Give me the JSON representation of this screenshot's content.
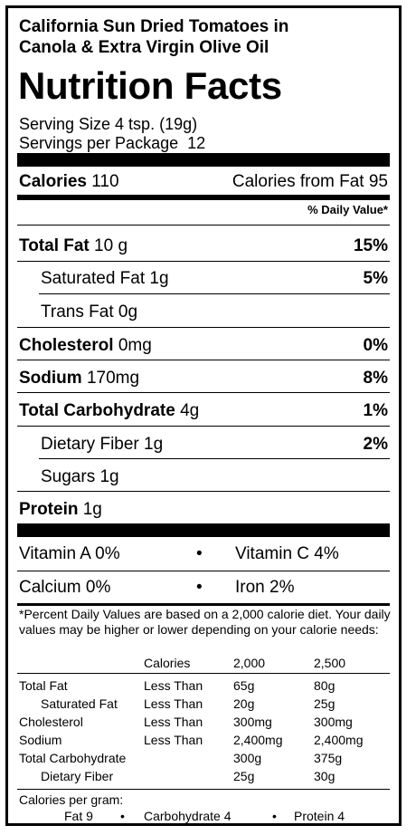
{
  "product": {
    "line1": "California Sun Dried Tomatoes in",
    "line2": "Canola & Extra Virgin Olive Oil"
  },
  "title": "Nutrition Facts",
  "serving": {
    "size": "Serving Size 4 tsp. (19g)",
    "per_package": "Servings per Package  12"
  },
  "calories": {
    "label": "Calories",
    "value": "110",
    "from_fat": "Calories from Fat 95"
  },
  "dv_header": "% Daily Value*",
  "nutrients": [
    {
      "label": "Total Fat",
      "amount": "10 g",
      "dv": "15%"
    },
    {
      "label": "Saturated Fat 1g",
      "amount": "",
      "dv": "5%"
    },
    {
      "label": "Trans Fat 0g",
      "amount": "",
      "dv": ""
    },
    {
      "label": "Cholesterol",
      "amount": "0mg",
      "dv": "0%"
    },
    {
      "label": "Sodium",
      "amount": "170mg",
      "dv": "8%"
    },
    {
      "label": "Total Carbohydrate",
      "amount": "4g",
      "dv": "1%"
    },
    {
      "label": "Dietary Fiber 1g",
      "amount": "",
      "dv": "2%"
    },
    {
      "label": "Sugars 1g",
      "amount": "",
      "dv": ""
    },
    {
      "label": "Protein",
      "amount": "1g",
      "dv": ""
    }
  ],
  "vitamins": [
    {
      "left": "Vitamin A 0%",
      "right": "Vitamin C 4%"
    },
    {
      "left": "Calcium 0%",
      "right": "Iron 2%"
    }
  ],
  "bullet": "•",
  "footnote": {
    "text": "*Percent Daily Values are based on a 2,000 calorie diet. Your daily values may be higher or lower depending on your calorie needs:",
    "header": [
      "Calories",
      "2,000",
      "2,500"
    ],
    "rows": [
      [
        "Total Fat",
        "Less Than",
        "65g",
        "80g"
      ],
      [
        "Saturated Fat",
        "Less Than",
        "20g",
        "25g"
      ],
      [
        "Cholesterol",
        "Less Than",
        "300mg",
        "300mg"
      ],
      [
        "Sodium",
        "Less Than",
        "2,400mg",
        "2,400mg"
      ],
      [
        "Total Carbohydrate",
        "",
        "300g",
        "375g"
      ],
      [
        "Dietary Fiber",
        "",
        "25g",
        "30g"
      ]
    ],
    "per_gram_label": "Calories per gram:",
    "per_gram": [
      "Fat 9",
      "Carbohydrate 4",
      "Protein 4"
    ]
  }
}
